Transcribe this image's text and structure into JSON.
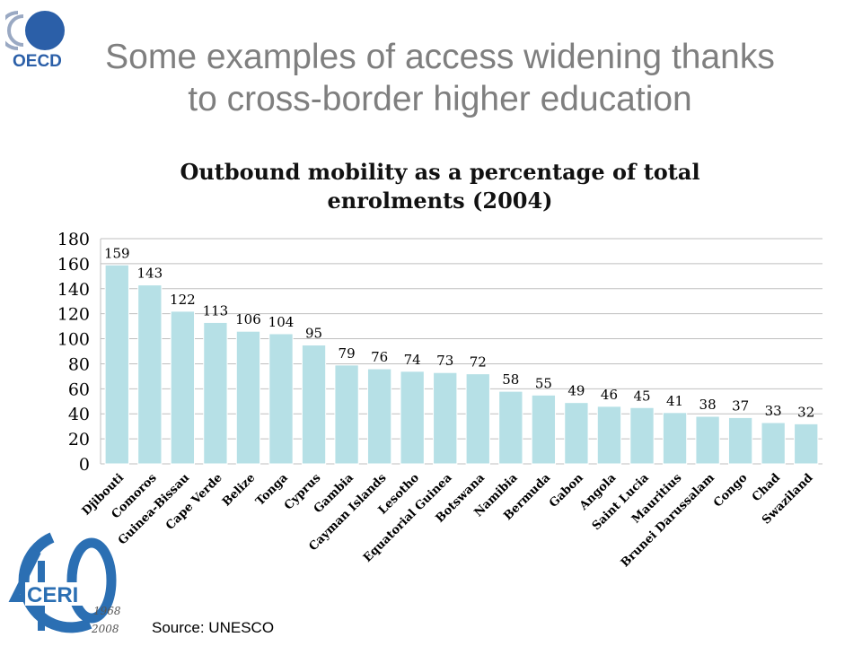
{
  "slide": {
    "title_line1": "Some examples of access widening thanks",
    "title_line2": "to cross-border higher education",
    "source": "Source: UNESCO"
  },
  "logos": {
    "oecd": {
      "text": "OECD",
      "icon": "oecd-logo-icon",
      "color": "#2b5fa8"
    },
    "ceri": {
      "text": "CERI",
      "years_top": "1968",
      "years_bottom": "2008",
      "icon": "ceri-40-anniversary-logo",
      "color": "#2b6fb3"
    }
  },
  "colors": {
    "bar": "#b6e0e6",
    "bar_stroke": "#ffffff",
    "grid": "#bfbfbf",
    "title": "#7f7f7f"
  },
  "chart_data": {
    "type": "bar",
    "title_line1": "Outbound mobility as a percentage of total",
    "title_line2": "enrolments (2004)",
    "categories": [
      "Djibouti",
      "Comoros",
      "Guinea-Bissau",
      "Cape Verde",
      "Belize",
      "Tonga",
      "Cyprus",
      "Gambia",
      "Cayman Islands",
      "Lesotho",
      "Equatorial Guinea",
      "Botswana",
      "Namibia",
      "Bermuda",
      "Gabon",
      "Angola",
      "Saint Lucia",
      "Mauritius",
      "Brunei Darussalam",
      "Congo",
      "Chad",
      "Swaziland"
    ],
    "values": [
      159,
      143,
      122,
      113,
      106,
      104,
      95,
      79,
      76,
      74,
      73,
      72,
      58,
      55,
      49,
      46,
      45,
      41,
      38,
      37,
      33,
      32
    ],
    "yticks": [
      0,
      20,
      40,
      60,
      80,
      100,
      120,
      140,
      160,
      180
    ],
    "ylim": [
      0,
      180
    ],
    "grid": true,
    "data_labels": true
  }
}
